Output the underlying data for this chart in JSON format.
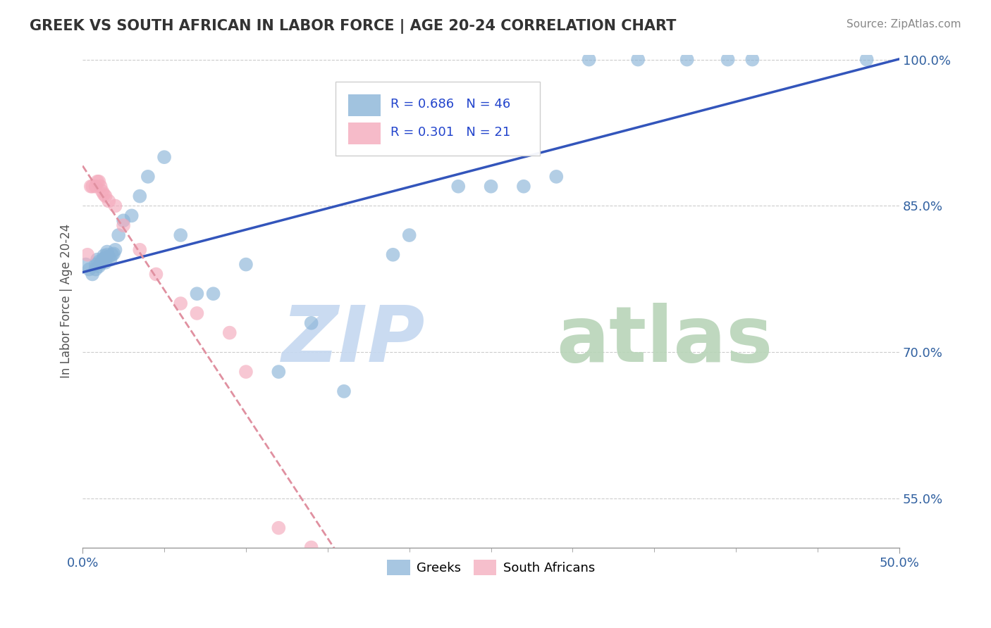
{
  "title": "GREEK VS SOUTH AFRICAN IN LABOR FORCE | AGE 20-24 CORRELATION CHART",
  "source": "Source: ZipAtlas.com",
  "ylabel": "In Labor Force | Age 20-24",
  "xlim": [
    0.0,
    0.5
  ],
  "ylim": [
    0.5,
    1.005
  ],
  "greek_color": "#8ab4d8",
  "south_african_color": "#f4aabc",
  "greek_R": 0.686,
  "greek_N": 46,
  "sa_R": 0.301,
  "sa_N": 21,
  "legend_label_greek": "Greeks",
  "legend_label_sa": "South Africans",
  "greek_line_color": "#3355bb",
  "sa_line_color": "#e090a0",
  "background_color": "#ffffff",
  "grid_color": "#cccccc",
  "greek_x": [
    0.002,
    0.004,
    0.006,
    0.008,
    0.008,
    0.009,
    0.01,
    0.01,
    0.011,
    0.012,
    0.013,
    0.013,
    0.014,
    0.014,
    0.015,
    0.015,
    0.016,
    0.017,
    0.018,
    0.019,
    0.02,
    0.022,
    0.025,
    0.03,
    0.035,
    0.04,
    0.05,
    0.06,
    0.07,
    0.08,
    0.1,
    0.12,
    0.14,
    0.16,
    0.19,
    0.2,
    0.23,
    0.25,
    0.27,
    0.29,
    0.31,
    0.34,
    0.37,
    0.395,
    0.41,
    0.48
  ],
  "greek_y": [
    0.79,
    0.785,
    0.78,
    0.785,
    0.79,
    0.795,
    0.788,
    0.793,
    0.791,
    0.794,
    0.796,
    0.799,
    0.792,
    0.797,
    0.8,
    0.803,
    0.798,
    0.795,
    0.8,
    0.801,
    0.805,
    0.82,
    0.835,
    0.84,
    0.86,
    0.88,
    0.9,
    0.82,
    0.76,
    0.76,
    0.79,
    0.68,
    0.73,
    0.66,
    0.8,
    0.82,
    0.87,
    0.87,
    0.87,
    0.88,
    1.0,
    1.0,
    1.0,
    1.0,
    1.0,
    1.0
  ],
  "sa_x": [
    0.003,
    0.005,
    0.006,
    0.008,
    0.009,
    0.01,
    0.011,
    0.012,
    0.013,
    0.014,
    0.016,
    0.02,
    0.025,
    0.035,
    0.045,
    0.06,
    0.07,
    0.09,
    0.1,
    0.12,
    0.14
  ],
  "sa_y": [
    0.8,
    0.87,
    0.87,
    0.87,
    0.875,
    0.875,
    0.87,
    0.865,
    0.862,
    0.86,
    0.855,
    0.85,
    0.83,
    0.805,
    0.78,
    0.75,
    0.74,
    0.72,
    0.68,
    0.52,
    0.5
  ]
}
